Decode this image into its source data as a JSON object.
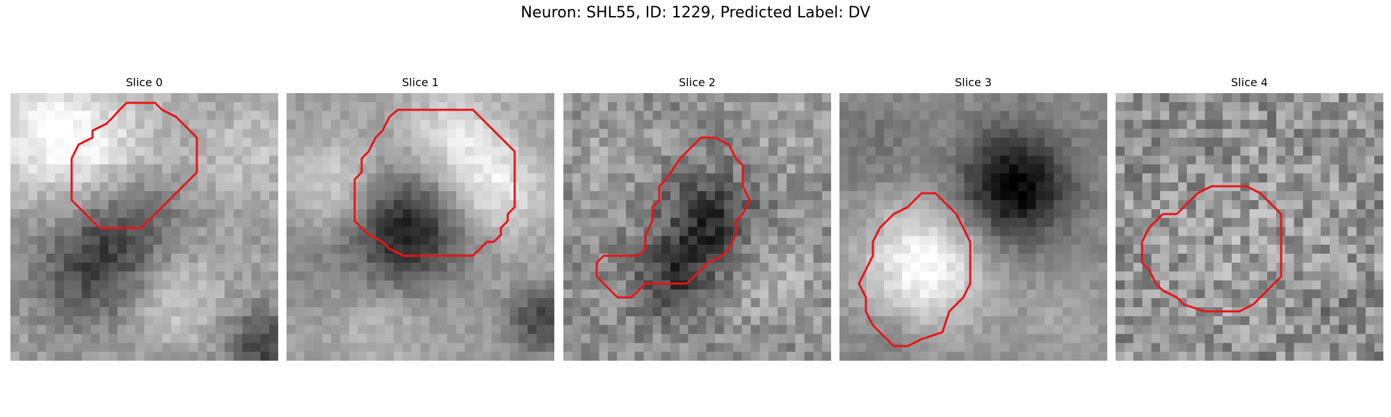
{
  "figure": {
    "title": "Neuron: SHL55, ID: 1229, Predicted Label: DV"
  },
  "colors": {
    "contour": "#e8141a",
    "background": "#ffffff"
  },
  "panels": [
    {
      "label": "Slice 0"
    },
    {
      "label": "Slice 1"
    },
    {
      "label": "Slice 2"
    },
    {
      "label": "Slice 3"
    },
    {
      "label": "Slice 4"
    }
  ]
}
